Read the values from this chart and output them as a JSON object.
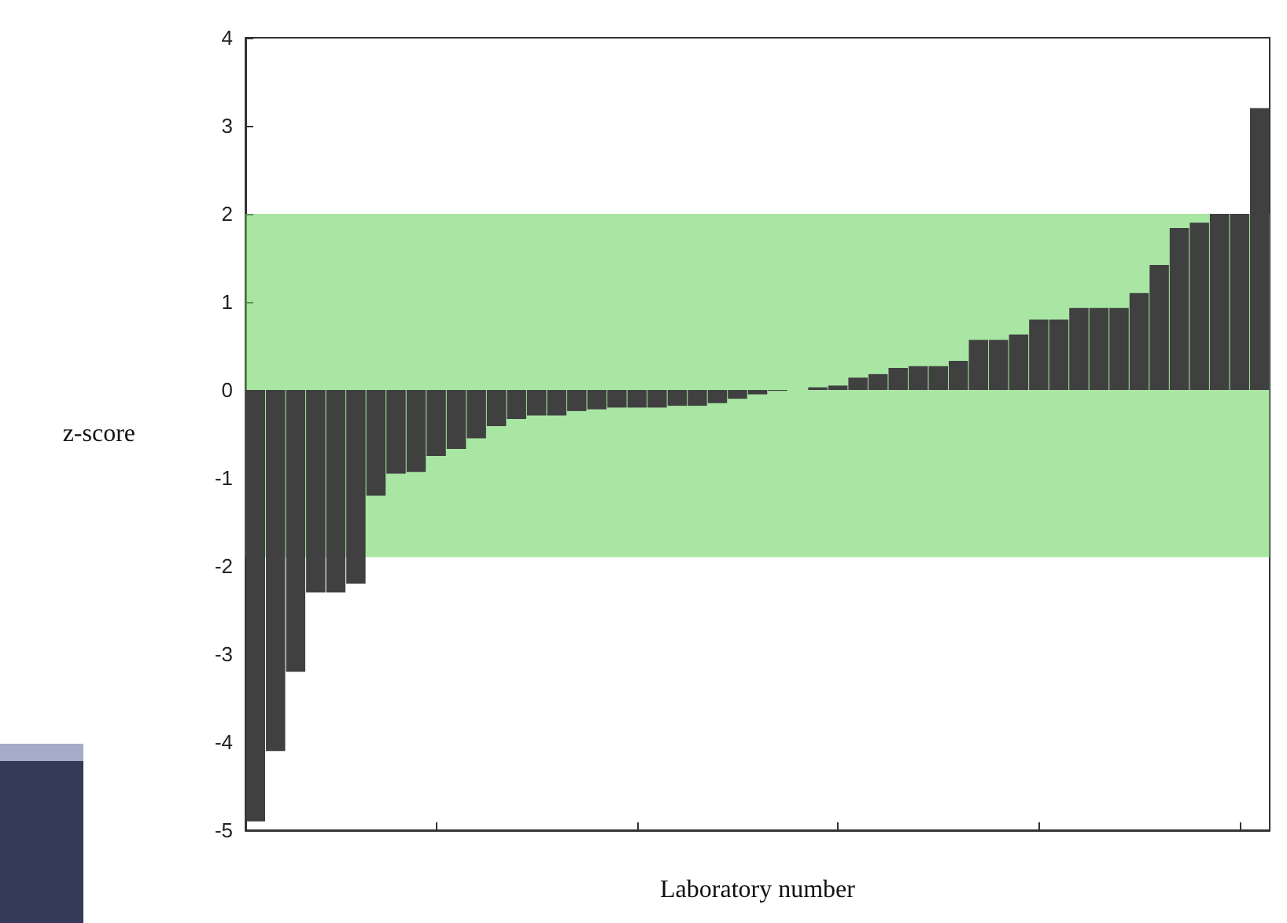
{
  "chart_data": {
    "type": "bar",
    "xlabel": "Laboratory number",
    "ylabel": "z-score",
    "categories": [
      null,
      null,
      null,
      null,
      null,
      null,
      null,
      null,
      null,
      null,
      null,
      null,
      null,
      null,
      null,
      null,
      null,
      null,
      null,
      null,
      null,
      null,
      null,
      null,
      null,
      null,
      null,
      null,
      null,
      null,
      null,
      null,
      null,
      null,
      null,
      null,
      null,
      null,
      null,
      null,
      null,
      null,
      null,
      null,
      null,
      null,
      null,
      null,
      null,
      null,
      null
    ],
    "series": [
      {
        "color": "#404040",
        "values": [
          -4.9,
          -4.1,
          -3.2,
          -2.3,
          -2.3,
          -2.2,
          -1.2,
          -0.95,
          -0.93,
          -0.75,
          -0.67,
          -0.55,
          -0.41,
          -0.33,
          -0.29,
          -0.29,
          -0.24,
          -0.22,
          -0.2,
          -0.2,
          -0.2,
          -0.18,
          -0.18,
          -0.15,
          -0.1,
          -0.05,
          -0.01,
          0.0,
          0.03,
          0.05,
          0.14,
          0.18,
          0.25,
          0.27,
          0.27,
          0.33,
          0.57,
          0.57,
          0.63,
          0.8,
          0.8,
          0.93,
          0.93,
          0.93,
          1.1,
          1.42,
          1.84,
          1.9,
          2.0,
          2.0,
          3.2
        ]
      }
    ],
    "ylim": [
      -5,
      4
    ],
    "yticks": [
      -5,
      -4,
      -3,
      -2,
      -1,
      0,
      1,
      2,
      3,
      4
    ],
    "bands": [
      {
        "axis": "y",
        "from": -1.9,
        "to": 2,
        "color": "#6fd668"
      }
    ],
    "grid": false
  }
}
